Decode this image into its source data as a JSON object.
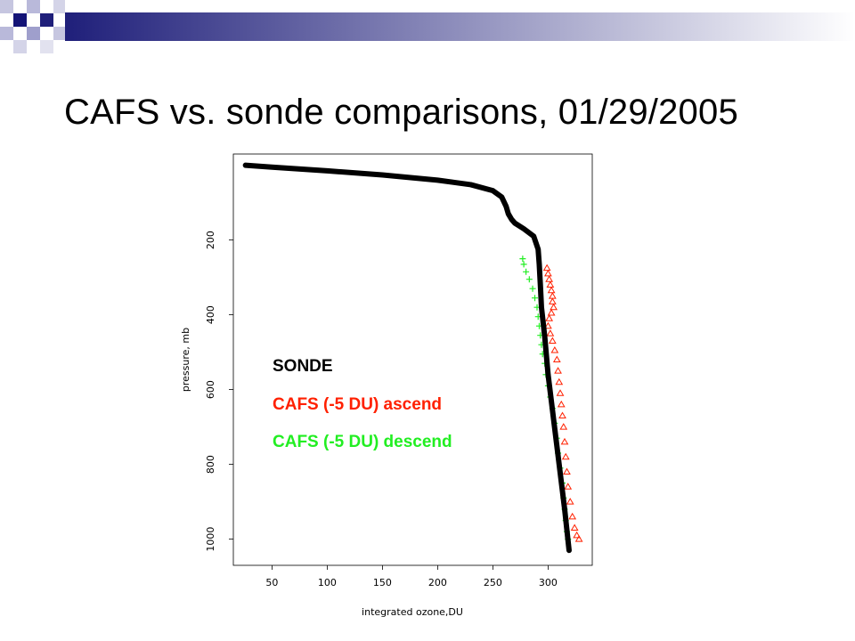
{
  "slide": {
    "title": "CAFS vs. sonde comparisons, 01/29/2005"
  },
  "colors": {
    "header_gradient_start": "#1f1f7a",
    "header_gradient_end": "#ffffff",
    "sonde": "#000000",
    "ascend": "#ff2000",
    "descend": "#22ee22"
  },
  "chart_data": {
    "type": "scatter",
    "title": "",
    "xlabel": "integrated ozone,DU",
    "ylabel": "pressure, mb",
    "xlim": [
      15,
      340
    ],
    "ylim": [
      1070,
      -30
    ],
    "y_inverted": true,
    "x_ticks": [
      50,
      100,
      150,
      200,
      250,
      300
    ],
    "y_ticks": [
      200,
      400,
      600,
      800,
      1000
    ],
    "legend_placement": "center-left",
    "legend": [
      {
        "label": "SONDE",
        "color": "#000000"
      },
      {
        "label": "CAFS (-5 DU) ascend",
        "color": "#ff2000"
      },
      {
        "label": "CAFS (-5 DU) descend",
        "color": "#22ee22"
      }
    ],
    "series": [
      {
        "name": "SONDE",
        "style": "line",
        "marker": "none",
        "x": [
          26,
          50,
          100,
          150,
          200,
          230,
          250,
          258,
          262,
          264,
          267,
          270,
          278,
          287,
          291,
          292,
          293,
          294,
          297,
          300,
          305,
          310,
          315,
          319
        ],
        "y": [
          0,
          5,
          15,
          26,
          40,
          52,
          68,
          85,
          110,
          130,
          145,
          155,
          170,
          190,
          225,
          265,
          320,
          380,
          460,
          560,
          680,
          800,
          920,
          1030
        ]
      },
      {
        "name": "CAFS (-5 DU) ascend",
        "style": "points",
        "marker": "triangle",
        "x": [
          299,
          300,
          301,
          302,
          303,
          304,
          304,
          305,
          303,
          301,
          300,
          302,
          304,
          306,
          308,
          309,
          310,
          311,
          312,
          313,
          314,
          315,
          316,
          317,
          318,
          320,
          322,
          324,
          326,
          328
        ],
        "y": [
          275,
          290,
          305,
          320,
          335,
          350,
          365,
          380,
          395,
          410,
          430,
          450,
          470,
          495,
          520,
          550,
          580,
          610,
          640,
          670,
          700,
          740,
          780,
          820,
          860,
          900,
          940,
          970,
          990,
          1000
        ]
      },
      {
        "name": "CAFS (-5 DU) descend",
        "style": "points",
        "marker": "plus",
        "x": [
          277,
          278,
          280,
          283,
          286,
          288,
          290,
          291,
          292,
          293,
          294,
          295,
          297,
          298,
          300,
          302,
          304,
          306,
          308,
          309,
          311,
          313,
          314,
          315,
          316,
          317,
          318
        ],
        "y": [
          250,
          265,
          285,
          305,
          330,
          355,
          380,
          405,
          430,
          455,
          480,
          505,
          530,
          560,
          590,
          620,
          650,
          690,
          730,
          770,
          810,
          850,
          890,
          920,
          950,
          980,
          1000
        ]
      }
    ]
  }
}
